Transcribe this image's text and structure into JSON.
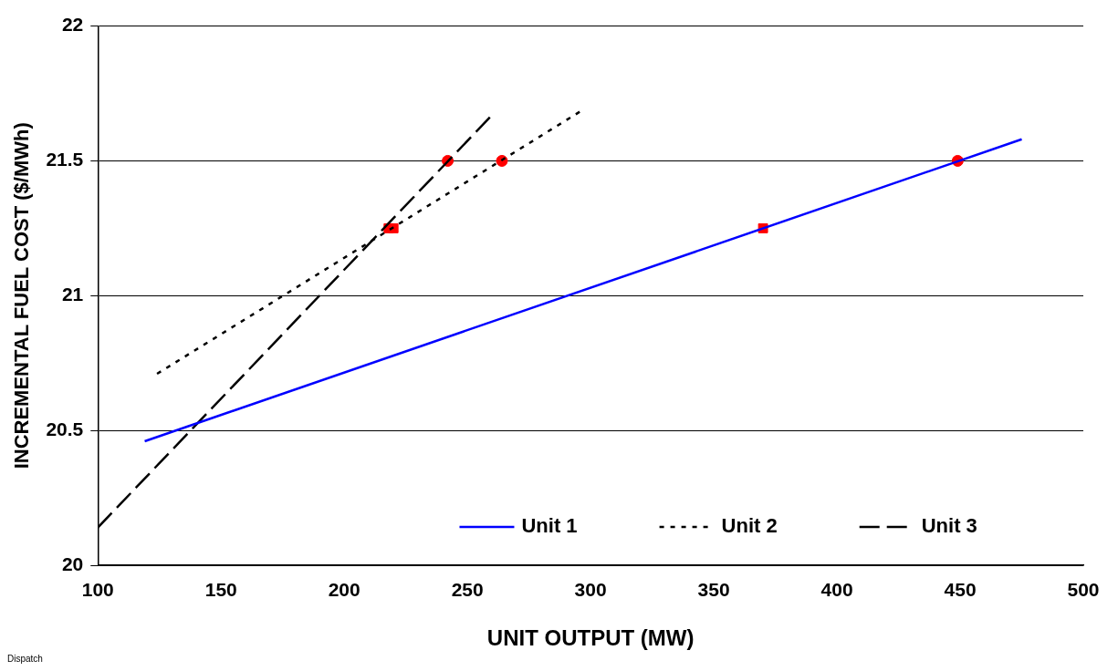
{
  "chart_data": {
    "type": "line",
    "xlabel": "UNIT OUTPUT (MW)",
    "ylabel": "INCREMENTAL FUEL COST ($/MWh)",
    "xlim": [
      100,
      500
    ],
    "xticks": [
      100,
      150,
      200,
      250,
      300,
      350,
      400,
      450,
      500
    ],
    "ylim": [
      20,
      22
    ],
    "yticks": [
      20,
      20.5,
      21,
      21.5,
      22
    ],
    "grid": "y",
    "legend": "bottom",
    "annotations": [
      "Dispatch"
    ],
    "series": [
      {
        "name": "Unit 1",
        "color": "#0000ff",
        "line_style": "solid",
        "marker": "none",
        "x": [
          119,
          475
        ],
        "values": [
          20.46,
          21.58
        ]
      },
      {
        "name": "Unit 2",
        "color": "#000000",
        "line_style": "dotted",
        "marker": "none",
        "x": [
          124,
          297
        ],
        "values": [
          20.71,
          21.69
        ]
      },
      {
        "name": "Unit 3",
        "color": "#000000",
        "line_style": "dashed",
        "marker": "none",
        "x": [
          100,
          260
        ],
        "values": [
          20.14,
          21.67
        ]
      },
      {
        "type": "scatter",
        "color": "#ff0000",
        "marker": "circle",
        "x": [
          242,
          264,
          449
        ],
        "values": [
          21.5,
          21.5,
          21.5
        ]
      },
      {
        "type": "scatter",
        "color": "#ff0000",
        "marker": "square",
        "x": [
          218,
          220,
          370
        ],
        "values": [
          21.25,
          21.25,
          21.25
        ]
      }
    ]
  }
}
